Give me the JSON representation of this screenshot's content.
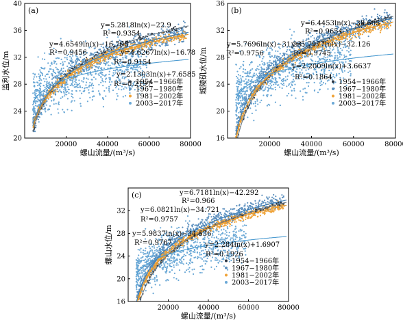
{
  "chart_data": [
    {
      "type": "scatter",
      "panel_label": "(a)",
      "xlabel": "螺山流量/(m³/s)",
      "ylabel": "监利水位/m",
      "xlim": [
        0,
        80000
      ],
      "ylim": [
        20,
        40
      ],
      "xticks": [
        "20000",
        "40000",
        "60000",
        "80000"
      ],
      "yticks": [
        "20",
        "24",
        "28",
        "32",
        "36",
        "40"
      ],
      "legend_position": "bottom-right",
      "legend": [
        "1954−1966年",
        "1967−1980年",
        "1981−2002年",
        "2003−2017年"
      ],
      "fits": [
        {
          "series": "1954−1966年",
          "a": 5.2818,
          "b": -22.9,
          "equation": "y=5.2818ln(x)−22.9",
          "r2": "R²=0.9354"
        },
        {
          "series": "1967−1980年",
          "a": 4.6549,
          "b": -16.798,
          "equation": "y=4.6549ln(x)−16.798",
          "r2": "R²=0.9456"
        },
        {
          "series": "1981−2002年",
          "a": 4.6267,
          "b": -16.78,
          "equation": "y=4.6267ln(x)−16.78",
          "r2": "R²=0.9154"
        },
        {
          "series": "2003−2017年",
          "a": 2.1303,
          "b": 7.6585,
          "equation": "y=2.1303ln(x)+7.6585",
          "r2": "R²=0.2197"
        }
      ]
    },
    {
      "type": "scatter",
      "panel_label": "(b)",
      "xlabel": "螺山流量/(m³/s)",
      "ylabel": "城陵矶水位/m",
      "xlim": [
        0,
        80000
      ],
      "ylim": [
        16,
        36
      ],
      "xticks": [
        "20000",
        "40000",
        "60000",
        "80000"
      ],
      "yticks": [
        "16",
        "20",
        "24",
        "28",
        "32",
        "36"
      ],
      "legend_position": "bottom-right",
      "legend": [
        "1954−1966年",
        "1967−1980年",
        "1981−2002年",
        "2003−2017年"
      ],
      "fits": [
        {
          "series": "1954−1966年",
          "a": 6.4453,
          "b": -38.605,
          "equation": "y=6.4453ln(x)−38.605",
          "r2": "R²=0.9654"
        },
        {
          "series": "1967−1980年",
          "a": 5.7696,
          "b": -31.23,
          "equation": "y=5.7696ln(x)−31.23",
          "r2": "R²=0.9756"
        },
        {
          "series": "1981−2002年",
          "a": 5.7977,
          "b": -32.126,
          "equation": "y=5.7977ln(x)−32.126",
          "r2": "R²=0.9745"
        },
        {
          "series": "2003−2017年",
          "a": 2.2009,
          "b": 3.6637,
          "equation": "y=2.2009ln(x)+3.6637",
          "r2": "R²=0.1864"
        }
      ]
    },
    {
      "type": "scatter",
      "panel_label": "(c)",
      "xlabel": "螺山流量/(m³/s)",
      "ylabel": "螺山水位/m",
      "xlim": [
        0,
        80000
      ],
      "ylim": [
        16,
        36
      ],
      "xticks": [
        "20000",
        "40000",
        "60000",
        "80000"
      ],
      "yticks": [
        "16",
        "20",
        "24",
        "28",
        "32"
      ],
      "legend_position": "bottom-right",
      "legend": [
        "1954−1966年",
        "1967−1980年",
        "1981−2002年",
        "2003−2017年"
      ],
      "fits": [
        {
          "series": "1954−1966年",
          "a": 6.7181,
          "b": -42.292,
          "equation": "y=6.7181ln(x)−42.292",
          "r2": "R²=0.966"
        },
        {
          "series": "1967−1980年",
          "a": 6.0821,
          "b": -34.721,
          "equation": "y=6.0821ln(x)−34.721",
          "r2": "R²=0.9757"
        },
        {
          "series": "1981−2002年",
          "a": 5.9837,
          "b": -34.536,
          "equation": "y=5.9837ln(x)−34.536",
          "r2": "R²=0.9767"
        },
        {
          "series": "2003−2017年",
          "a": 2.284,
          "b": 1.6907,
          "equation": "y=2.284ln(x)+1.6907",
          "r2": "R²=0.1926"
        }
      ]
    }
  ],
  "colors": {
    "1954−1966年": "#2a3440",
    "1967−1980年": "#5b8fbe",
    "1981−2002年": "#f0a43a",
    "2003−2017年": "#6aa8d6"
  }
}
